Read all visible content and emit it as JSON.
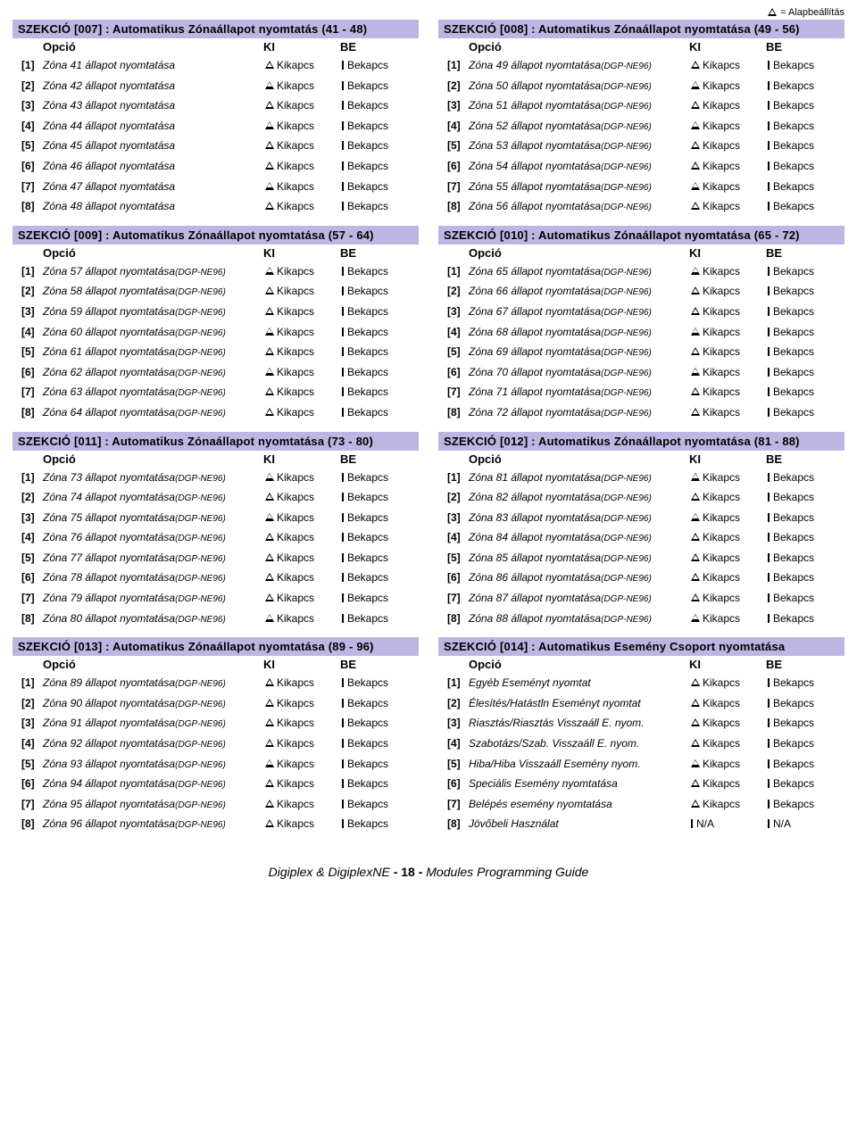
{
  "topnote": "= Alapbeállítás",
  "columns": {
    "opcio": "Opció",
    "ki": "KI",
    "be": "BE"
  },
  "ki_text": "Kikapcs",
  "be_text": "Bekapcs",
  "na_text": "N/A",
  "footer": {
    "left": "Digiplex & DigiplexNE",
    "page": "- 18 -",
    "right": "Modules Programming Guide"
  },
  "sections": [
    {
      "title": "SZEKCIÓ [007] : Automatikus Zónaállapot nyomtatás (41 - 48)",
      "rows": [
        {
          "n": "[1]",
          "t": "Zóna 41 állapot nyomtatása",
          "s": "",
          "kt": "tri",
          "bt": "bar"
        },
        {
          "n": "[2]",
          "t": "Zóna 42 állapot nyomtatása",
          "s": "",
          "kt": "tri",
          "bt": "bar"
        },
        {
          "n": "[3]",
          "t": "Zóna 43 állapot nyomtatása",
          "s": "",
          "kt": "tri",
          "bt": "bar"
        },
        {
          "n": "[4]",
          "t": "Zóna 44 állapot nyomtatása",
          "s": "",
          "kt": "tri",
          "bt": "bar"
        },
        {
          "n": "[5]",
          "t": "Zóna 45 állapot nyomtatása",
          "s": "",
          "kt": "tri",
          "bt": "bar"
        },
        {
          "n": "[6]",
          "t": "Zóna 46 állapot nyomtatása",
          "s": "",
          "kt": "tri",
          "bt": "bar"
        },
        {
          "n": "[7]",
          "t": "Zóna 47 állapot nyomtatása",
          "s": "",
          "kt": "tri",
          "bt": "bar"
        },
        {
          "n": "[8]",
          "t": "Zóna 48 állapot nyomtatása",
          "s": "",
          "kt": "tri",
          "bt": "bar"
        }
      ]
    },
    {
      "title": "SZEKCIÓ [008] : Automatikus Zónaállapot nyomtatása (49 - 56)",
      "rows": [
        {
          "n": "[1]",
          "t": "Zóna 49 állapot nyomtatása",
          "s": "(DGP-NE96)",
          "kt": "tri",
          "bt": "bar"
        },
        {
          "n": "[2]",
          "t": "Zóna 50 állapot nyomtatása",
          "s": "(DGP-NE96)",
          "kt": "tri",
          "bt": "bar"
        },
        {
          "n": "[3]",
          "t": "Zóna 51 állapot nyomtatása",
          "s": "(DGP-NE96)",
          "kt": "tri",
          "bt": "bar"
        },
        {
          "n": "[4]",
          "t": "Zóna 52 állapot nyomtatása",
          "s": "(DGP-NE96)",
          "kt": "tri",
          "bt": "bar"
        },
        {
          "n": "[5]",
          "t": "Zóna 53 állapot nyomtatása",
          "s": "(DGP-NE96)",
          "kt": "tri",
          "bt": "bar"
        },
        {
          "n": "[6]",
          "t": "Zóna 54 állapot nyomtatása",
          "s": "(DGP-NE96)",
          "kt": "tri",
          "bt": "bar"
        },
        {
          "n": "[7]",
          "t": "Zóna 55 állapot nyomtatása",
          "s": "(DGP-NE96)",
          "kt": "tri",
          "bt": "bar"
        },
        {
          "n": "[8]",
          "t": "Zóna 56 állapot nyomtatása",
          "s": "(DGP-NE96)",
          "kt": "tri",
          "bt": "bar"
        }
      ]
    },
    {
      "title": "SZEKCIÓ [009] : Automatikus Zónaállapot nyomtatása (57 - 64)",
      "rows": [
        {
          "n": "[1]",
          "t": "Zóna 57 állapot nyomtatása",
          "s": "(DGP-NE96)",
          "kt": "tri",
          "bt": "bar"
        },
        {
          "n": "[2]",
          "t": "Zóna 58 állapot nyomtatása",
          "s": "(DGP-NE96)",
          "kt": "tri",
          "bt": "bar"
        },
        {
          "n": "[3]",
          "t": "Zóna 59 állapot nyomtatása",
          "s": "(DGP-NE96)",
          "kt": "tri",
          "bt": "bar"
        },
        {
          "n": "[4]",
          "t": "Zóna 60 állapot nyomtatása",
          "s": "(DGP-NE96)",
          "kt": "tri",
          "bt": "bar"
        },
        {
          "n": "[5]",
          "t": "Zóna 61 állapot nyomtatása",
          "s": "(DGP-NE96)",
          "kt": "tri",
          "bt": "bar"
        },
        {
          "n": "[6]",
          "t": "Zóna 62 állapot nyomtatása",
          "s": "(DGP-NE96)",
          "kt": "tri",
          "bt": "bar"
        },
        {
          "n": "[7]",
          "t": "Zóna 63 állapot nyomtatása",
          "s": "(DGP-NE96)",
          "kt": "tri",
          "bt": "bar"
        },
        {
          "n": "[8]",
          "t": "Zóna 64 állapot nyomtatása",
          "s": "(DGP-NE96)",
          "kt": "tri",
          "bt": "bar"
        }
      ]
    },
    {
      "title": "SZEKCIÓ [010] : Automatikus Zónaállapot nyomtatása (65 - 72)",
      "rows": [
        {
          "n": "[1]",
          "t": "Zóna 65 állapot nyomtatása",
          "s": "(DGP-NE96)",
          "kt": "tri",
          "bt": "bar"
        },
        {
          "n": "[2]",
          "t": "Zóna 66 állapot nyomtatása",
          "s": "(DGP-NE96)",
          "kt": "tri",
          "bt": "bar"
        },
        {
          "n": "[3]",
          "t": "Zóna 67 állapot nyomtatása",
          "s": "(DGP-NE96)",
          "kt": "tri",
          "bt": "bar"
        },
        {
          "n": "[4]",
          "t": "Zóna 68 állapot nyomtatása",
          "s": "(DGP-NE96)",
          "kt": "tri",
          "bt": "bar"
        },
        {
          "n": "[5]",
          "t": "Zóna 69 állapot nyomtatása",
          "s": "(DGP-NE96)",
          "kt": "tri",
          "bt": "bar"
        },
        {
          "n": "[6]",
          "t": "Zóna 70 állapot nyomtatása",
          "s": "(DGP-NE96)",
          "kt": "tri",
          "bt": "bar"
        },
        {
          "n": "[7]",
          "t": "Zóna 71 állapot nyomtatása",
          "s": "(DGP-NE96)",
          "kt": "tri",
          "bt": "bar"
        },
        {
          "n": "[8]",
          "t": "Zóna 72 állapot nyomtatása",
          "s": "(DGP-NE96)",
          "kt": "tri",
          "bt": "bar"
        }
      ]
    },
    {
      "title": "SZEKCIÓ [011] : Automatikus Zónaállapot nyomtatása (73 - 80)",
      "rows": [
        {
          "n": "[1]",
          "t": "Zóna 73 állapot nyomtatása",
          "s": "(DGP-NE96)",
          "kt": "tri",
          "bt": "bar"
        },
        {
          "n": "[2]",
          "t": "Zóna 74 állapot nyomtatása",
          "s": "(DGP-NE96)",
          "kt": "tri",
          "bt": "bar"
        },
        {
          "n": "[3]",
          "t": "Zóna 75 állapot nyomtatása",
          "s": "(DGP-NE96)",
          "kt": "tri",
          "bt": "bar"
        },
        {
          "n": "[4]",
          "t": "Zóna 76 állapot nyomtatása",
          "s": "(DGP-NE96)",
          "kt": "tri",
          "bt": "bar"
        },
        {
          "n": "[5]",
          "t": "Zóna 77 állapot nyomtatása",
          "s": "(DGP-NE96)",
          "kt": "tri",
          "bt": "bar"
        },
        {
          "n": "[6]",
          "t": "Zóna 78 állapot nyomtatása",
          "s": "(DGP-NE96)",
          "kt": "tri",
          "bt": "bar"
        },
        {
          "n": "[7]",
          "t": "Zóna 79 állapot nyomtatása",
          "s": "(DGP-NE96)",
          "kt": "tri",
          "bt": "bar"
        },
        {
          "n": "[8]",
          "t": "Zóna 80 állapot nyomtatása",
          "s": "(DGP-NE96)",
          "kt": "tri",
          "bt": "bar"
        }
      ]
    },
    {
      "title": "SZEKCIÓ [012] : Automatikus Zónaállapot nyomtatása (81 - 88)",
      "rows": [
        {
          "n": "[1]",
          "t": "Zóna 81 állapot nyomtatása",
          "s": "(DGP-NE96)",
          "kt": "tri",
          "bt": "bar"
        },
        {
          "n": "[2]",
          "t": "Zóna 82 állapot nyomtatása",
          "s": "(DGP-NE96)",
          "kt": "tri",
          "bt": "bar"
        },
        {
          "n": "[3]",
          "t": "Zóna 83 állapot nyomtatása",
          "s": "(DGP-NE96)",
          "kt": "tri",
          "bt": "bar"
        },
        {
          "n": "[4]",
          "t": "Zóna 84 állapot nyomtatása",
          "s": "(DGP-NE96)",
          "kt": "tri",
          "bt": "bar"
        },
        {
          "n": "[5]",
          "t": "Zóna 85 állapot nyomtatása",
          "s": "(DGP-NE96)",
          "kt": "tri",
          "bt": "bar"
        },
        {
          "n": "[6]",
          "t": "Zóna 86 állapot nyomtatása",
          "s": "(DGP-NE96)",
          "kt": "tri",
          "bt": "bar"
        },
        {
          "n": "[7]",
          "t": "Zóna 87 állapot nyomtatása",
          "s": "(DGP-NE96)",
          "kt": "tri",
          "bt": "bar"
        },
        {
          "n": "[8]",
          "t": "Zóna 88 állapot nyomtatása",
          "s": "(DGP-NE96)",
          "kt": "tri",
          "bt": "bar"
        }
      ]
    },
    {
      "title": "SZEKCIÓ [013] : Automatikus Zónaállapot nyomtatása (89 - 96)",
      "rows": [
        {
          "n": "[1]",
          "t": "Zóna 89 állapot nyomtatása",
          "s": "(DGP-NE96)",
          "kt": "tri",
          "bt": "bar"
        },
        {
          "n": "[2]",
          "t": "Zóna 90 állapot nyomtatása",
          "s": "(DGP-NE96)",
          "kt": "tri",
          "bt": "bar"
        },
        {
          "n": "[3]",
          "t": "Zóna 91 állapot nyomtatása",
          "s": "(DGP-NE96)",
          "kt": "tri",
          "bt": "bar"
        },
        {
          "n": "[4]",
          "t": "Zóna 92 állapot nyomtatása",
          "s": "(DGP-NE96)",
          "kt": "tri",
          "bt": "bar"
        },
        {
          "n": "[5]",
          "t": "Zóna 93 állapot nyomtatása",
          "s": "(DGP-NE96)",
          "kt": "tri",
          "bt": "bar"
        },
        {
          "n": "[6]",
          "t": "Zóna 94 állapot nyomtatása",
          "s": "(DGP-NE96)",
          "kt": "tri",
          "bt": "bar"
        },
        {
          "n": "[7]",
          "t": "Zóna 95 állapot nyomtatása",
          "s": "(DGP-NE96)",
          "kt": "tri",
          "bt": "bar"
        },
        {
          "n": "[8]",
          "t": "Zóna 96 állapot nyomtatása",
          "s": "(DGP-NE96)",
          "kt": "tri",
          "bt": "bar"
        }
      ]
    },
    {
      "title": "SZEKCIÓ [014] : Automatikus Esemény Csoport nyomtatása",
      "rows": [
        {
          "n": "[1]",
          "t": "Egyéb Eseményt nyomtat",
          "s": "",
          "kt": "tri",
          "bt": "bar"
        },
        {
          "n": "[2]",
          "t": "Élesítés/Hatástln Eseményt nyomtat",
          "s": "",
          "kt": "tri",
          "bt": "bar"
        },
        {
          "n": "[3]",
          "t": "Riasztás/Riasztás Visszaáll E. nyom.",
          "s": "",
          "kt": "tri",
          "bt": "bar"
        },
        {
          "n": "[4]",
          "t": "Szabotázs/Szab. Visszaáll E. nyom.",
          "s": "",
          "kt": "tri",
          "bt": "bar"
        },
        {
          "n": "[5]",
          "t": "Hiba/Hiba Visszaáll Esemény nyom.",
          "s": "",
          "kt": "tri",
          "bt": "bar"
        },
        {
          "n": "[6]",
          "t": "Speciális Esemény nyomtatása",
          "s": "",
          "kt": "tri",
          "bt": "bar"
        },
        {
          "n": "[7]",
          "t": "Belépés esemény nyomtatása",
          "s": "",
          "kt": "tri",
          "bt": "bar"
        },
        {
          "n": "[8]",
          "t": "Jövőbeli Használat",
          "s": "",
          "kt": "bar",
          "bt": "bar",
          "kv": "N/A",
          "bv": "N/A"
        }
      ]
    }
  ]
}
